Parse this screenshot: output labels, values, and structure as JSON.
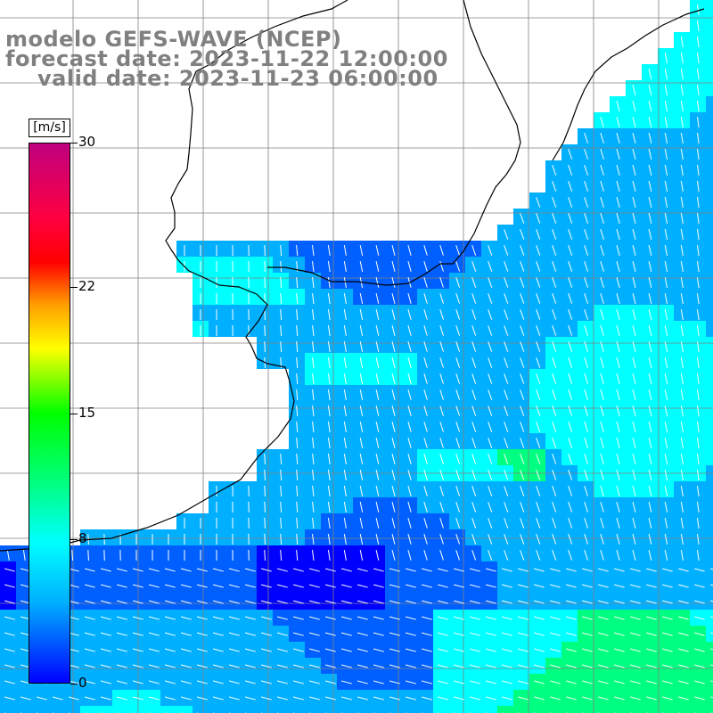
{
  "title": {
    "line1": "modelo GEFS-WAVE (NCEP)",
    "line2": "forecast date: 2023-11-22 12:00:00",
    "line3": "valid date: 2023-11-23 06:00:00"
  },
  "colorbar": {
    "unit": "[m/s]",
    "min": 0,
    "max": 30,
    "ticks": [
      {
        "value": 30,
        "label": "30"
      },
      {
        "value": 22,
        "label": "22"
      },
      {
        "value": 15,
        "label": "15"
      },
      {
        "value": 8,
        "label": "8"
      },
      {
        "value": 0,
        "label": "0"
      }
    ],
    "colors": [
      "#0000ff",
      "#0060ff",
      "#00b0ff",
      "#00ffff",
      "#00ff80",
      "#00ff00",
      "#80ff00",
      "#ffff00",
      "#ffa000",
      "#ff0000",
      "#c00080"
    ]
  },
  "map": {
    "variable": "wind speed and direction",
    "grid_color": "#808080",
    "coastline_color": "#000000",
    "land_color": "#ffffff",
    "arrow_color": "#ffffff"
  }
}
